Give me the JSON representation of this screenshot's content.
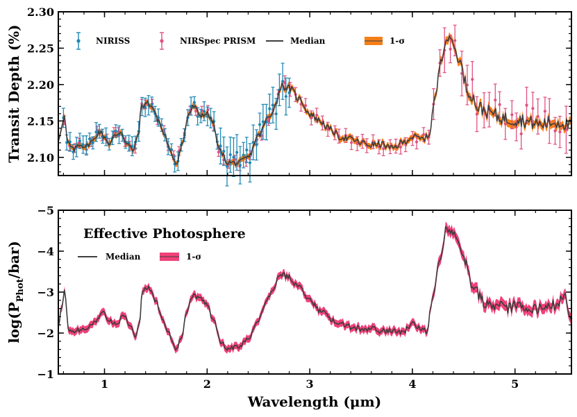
{
  "chart_data": [
    {
      "type": "line",
      "panel": "top",
      "ylabel": "Transit Depth (%)",
      "xlabel": "",
      "xlim": [
        0.55,
        5.55
      ],
      "ylim": [
        2.075,
        2.3
      ],
      "yticks": [
        2.1,
        2.15,
        2.2,
        2.25,
        2.3
      ],
      "yticklabels": [
        "2.10",
        "2.15",
        "2.20",
        "2.25",
        "2.30"
      ],
      "xticks": [
        1,
        2,
        3,
        4,
        5
      ],
      "legend": {
        "placement": "top",
        "entries": [
          {
            "label": "NIRISS",
            "kind": "errorbar",
            "color": "#1f87b4"
          },
          {
            "label": "NIRSpec PRISM",
            "kind": "errorbar",
            "color": "#e0507e"
          },
          {
            "label": "Median",
            "kind": "line",
            "color": "#3d3d3d"
          },
          {
            "label": "1-σ",
            "kind": "band",
            "color": "#f57f17"
          }
        ]
      },
      "median_nodes": [
        [
          0.55,
          2.125
        ],
        [
          0.58,
          2.14
        ],
        [
          0.61,
          2.155
        ],
        [
          0.64,
          2.12
        ],
        [
          0.7,
          2.11
        ],
        [
          0.75,
          2.118
        ],
        [
          0.82,
          2.115
        ],
        [
          0.88,
          2.122
        ],
        [
          0.95,
          2.135
        ],
        [
          1.0,
          2.128
        ],
        [
          1.05,
          2.118
        ],
        [
          1.1,
          2.13
        ],
        [
          1.16,
          2.135
        ],
        [
          1.22,
          2.118
        ],
        [
          1.28,
          2.11
        ],
        [
          1.33,
          2.132
        ],
        [
          1.36,
          2.17
        ],
        [
          1.42,
          2.175
        ],
        [
          1.46,
          2.17
        ],
        [
          1.52,
          2.152
        ],
        [
          1.58,
          2.132
        ],
        [
          1.65,
          2.105
        ],
        [
          1.7,
          2.092
        ],
        [
          1.76,
          2.12
        ],
        [
          1.82,
          2.16
        ],
        [
          1.87,
          2.17
        ],
        [
          1.93,
          2.158
        ],
        [
          2.0,
          2.16
        ],
        [
          2.05,
          2.15
        ],
        [
          2.12,
          2.11
        ],
        [
          2.2,
          2.093
        ],
        [
          2.3,
          2.092
        ],
        [
          2.4,
          2.1
        ],
        [
          2.5,
          2.13
        ],
        [
          2.6,
          2.155
        ],
        [
          2.66,
          2.17
        ],
        [
          2.72,
          2.198
        ],
        [
          2.8,
          2.195
        ],
        [
          2.9,
          2.18
        ],
        [
          3.0,
          2.16
        ],
        [
          3.1,
          2.15
        ],
        [
          3.2,
          2.138
        ],
        [
          3.3,
          2.128
        ],
        [
          3.4,
          2.125
        ],
        [
          3.5,
          2.12
        ],
        [
          3.6,
          2.117
        ],
        [
          3.7,
          2.118
        ],
        [
          3.8,
          2.112
        ],
        [
          3.9,
          2.12
        ],
        [
          4.0,
          2.128
        ],
        [
          4.1,
          2.125
        ],
        [
          4.16,
          2.13
        ],
        [
          4.22,
          2.18
        ],
        [
          4.28,
          2.235
        ],
        [
          4.33,
          2.262
        ],
        [
          4.38,
          2.262
        ],
        [
          4.45,
          2.235
        ],
        [
          4.55,
          2.19
        ],
        [
          4.65,
          2.168
        ],
        [
          4.75,
          2.162
        ],
        [
          4.85,
          2.155
        ],
        [
          4.95,
          2.152
        ],
        [
          5.05,
          2.152
        ],
        [
          5.15,
          2.148
        ],
        [
          5.25,
          2.145
        ],
        [
          5.35,
          2.148
        ],
        [
          5.45,
          2.148
        ],
        [
          5.55,
          2.142
        ]
      ],
      "noise_amplitude": 0.006,
      "band_halfwidth": 0.004,
      "niriss_count": 70,
      "niriss_range": [
        0.6,
        2.8
      ],
      "niriss_yerr": 0.013,
      "prism_count": 92,
      "prism_range": [
        0.6,
        5.5
      ],
      "prism_yerr_short": 0.006,
      "prism_yerr_long": 0.028
    },
    {
      "type": "line",
      "panel": "bottom",
      "ylabel": "log(P_Phot/bar)",
      "xlabel": "Wavelength (μm)",
      "xlim": [
        0.55,
        5.55
      ],
      "ylim": [
        -1,
        -5
      ],
      "yticks": [
        -5,
        -4,
        -3,
        -2,
        -1
      ],
      "yticklabels": [
        "−5",
        "−4",
        "−3",
        "−2",
        "−1"
      ],
      "xticks": [
        1,
        2,
        3,
        4,
        5
      ],
      "xticklabels": [
        "1",
        "2",
        "3",
        "4",
        "5"
      ],
      "annotation": "Effective Photosphere",
      "legend": {
        "placement": "top-left",
        "entries": [
          {
            "label": "Median",
            "kind": "line",
            "color": "#3d3d3d"
          },
          {
            "label": "1-σ",
            "kind": "band",
            "color": "#f0417a"
          }
        ]
      },
      "median_nodes": [
        [
          0.55,
          -2.2
        ],
        [
          0.58,
          -2.6
        ],
        [
          0.61,
          -3.0
        ],
        [
          0.65,
          -2.1
        ],
        [
          0.7,
          -2.05
        ],
        [
          0.8,
          -2.1
        ],
        [
          0.9,
          -2.25
        ],
        [
          0.98,
          -2.5
        ],
        [
          1.05,
          -2.3
        ],
        [
          1.12,
          -2.2
        ],
        [
          1.18,
          -2.45
        ],
        [
          1.25,
          -2.2
        ],
        [
          1.3,
          -1.95
        ],
        [
          1.34,
          -2.2
        ],
        [
          1.37,
          -3.05
        ],
        [
          1.43,
          -3.1
        ],
        [
          1.5,
          -2.8
        ],
        [
          1.56,
          -2.35
        ],
        [
          1.62,
          -2.0
        ],
        [
          1.7,
          -1.62
        ],
        [
          1.75,
          -1.9
        ],
        [
          1.8,
          -2.5
        ],
        [
          1.86,
          -2.92
        ],
        [
          1.92,
          -2.85
        ],
        [
          2.0,
          -2.7
        ],
        [
          2.06,
          -2.3
        ],
        [
          2.14,
          -1.75
        ],
        [
          2.2,
          -1.62
        ],
        [
          2.3,
          -1.65
        ],
        [
          2.4,
          -1.85
        ],
        [
          2.5,
          -2.3
        ],
        [
          2.58,
          -2.8
        ],
        [
          2.65,
          -3.1
        ],
        [
          2.71,
          -3.45
        ],
        [
          2.8,
          -3.35
        ],
        [
          2.9,
          -3.1
        ],
        [
          3.0,
          -2.8
        ],
        [
          3.1,
          -2.55
        ],
        [
          3.2,
          -2.35
        ],
        [
          3.3,
          -2.25
        ],
        [
          3.4,
          -2.15
        ],
        [
          3.5,
          -2.1
        ],
        [
          3.6,
          -2.1
        ],
        [
          3.7,
          -2.05
        ],
        [
          3.8,
          -2.05
        ],
        [
          3.9,
          -2.0
        ],
        [
          4.0,
          -2.25
        ],
        [
          4.08,
          -2.1
        ],
        [
          4.14,
          -2.05
        ],
        [
          4.2,
          -2.9
        ],
        [
          4.27,
          -3.8
        ],
        [
          4.33,
          -4.55
        ],
        [
          4.38,
          -4.5
        ],
        [
          4.45,
          -4.2
        ],
        [
          4.52,
          -3.7
        ],
        [
          4.6,
          -3.1
        ],
        [
          4.7,
          -2.75
        ],
        [
          4.8,
          -2.7
        ],
        [
          4.9,
          -2.6
        ],
        [
          5.0,
          -2.65
        ],
        [
          5.1,
          -2.62
        ],
        [
          5.2,
          -2.6
        ],
        [
          5.3,
          -2.6
        ],
        [
          5.4,
          -2.7
        ],
        [
          5.48,
          -2.9
        ],
        [
          5.55,
          -2.35
        ]
      ],
      "noise_amplitude": 0.09,
      "band_halfwidth": 0.09
    }
  ]
}
